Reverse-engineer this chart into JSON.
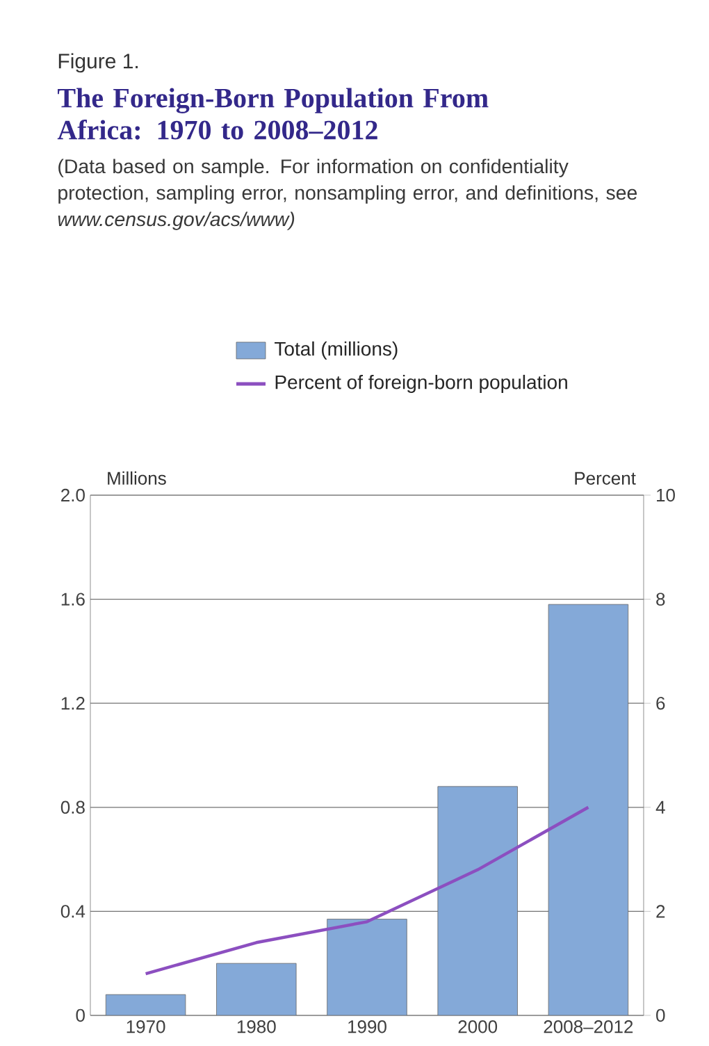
{
  "chart_data": {
    "type": "bar",
    "title": "The Foreign-Born Population From Africa: 1970 to 2008–2012",
    "subtitle": "(Data based on sample. For information on confidentiality protection, sampling error, nonsampling error, and definitions, see *www.census.gov/acs/www)*",
    "annotations": [
      "Figure 1."
    ],
    "ylabel": "Millions",
    "y2label": "Percent",
    "categories": [
      "1970",
      "1980",
      "1990",
      "2000",
      "2008–2012"
    ],
    "series": [
      {
        "name": "Total (millions)",
        "color": "#84a9d8",
        "values": [
          0.08,
          0.2,
          0.37,
          0.88,
          1.58
        ]
      },
      {
        "name": "Percent of foreign-born population",
        "type": "line",
        "axis": "y2",
        "color": "#8c4fc0",
        "values": [
          0.8,
          1.4,
          1.8,
          2.8,
          4.0
        ]
      }
    ],
    "ylim": [
      0,
      2.0
    ],
    "yticks": [
      0,
      0.4,
      0.8,
      1.2,
      1.6,
      {
        "value": 2.0,
        "label": "2.0"
      }
    ],
    "y2lim": [
      0,
      10
    ],
    "y2ticks": [
      0,
      2,
      4,
      6,
      8,
      10
    ],
    "grid": "y",
    "legend": "top"
  }
}
